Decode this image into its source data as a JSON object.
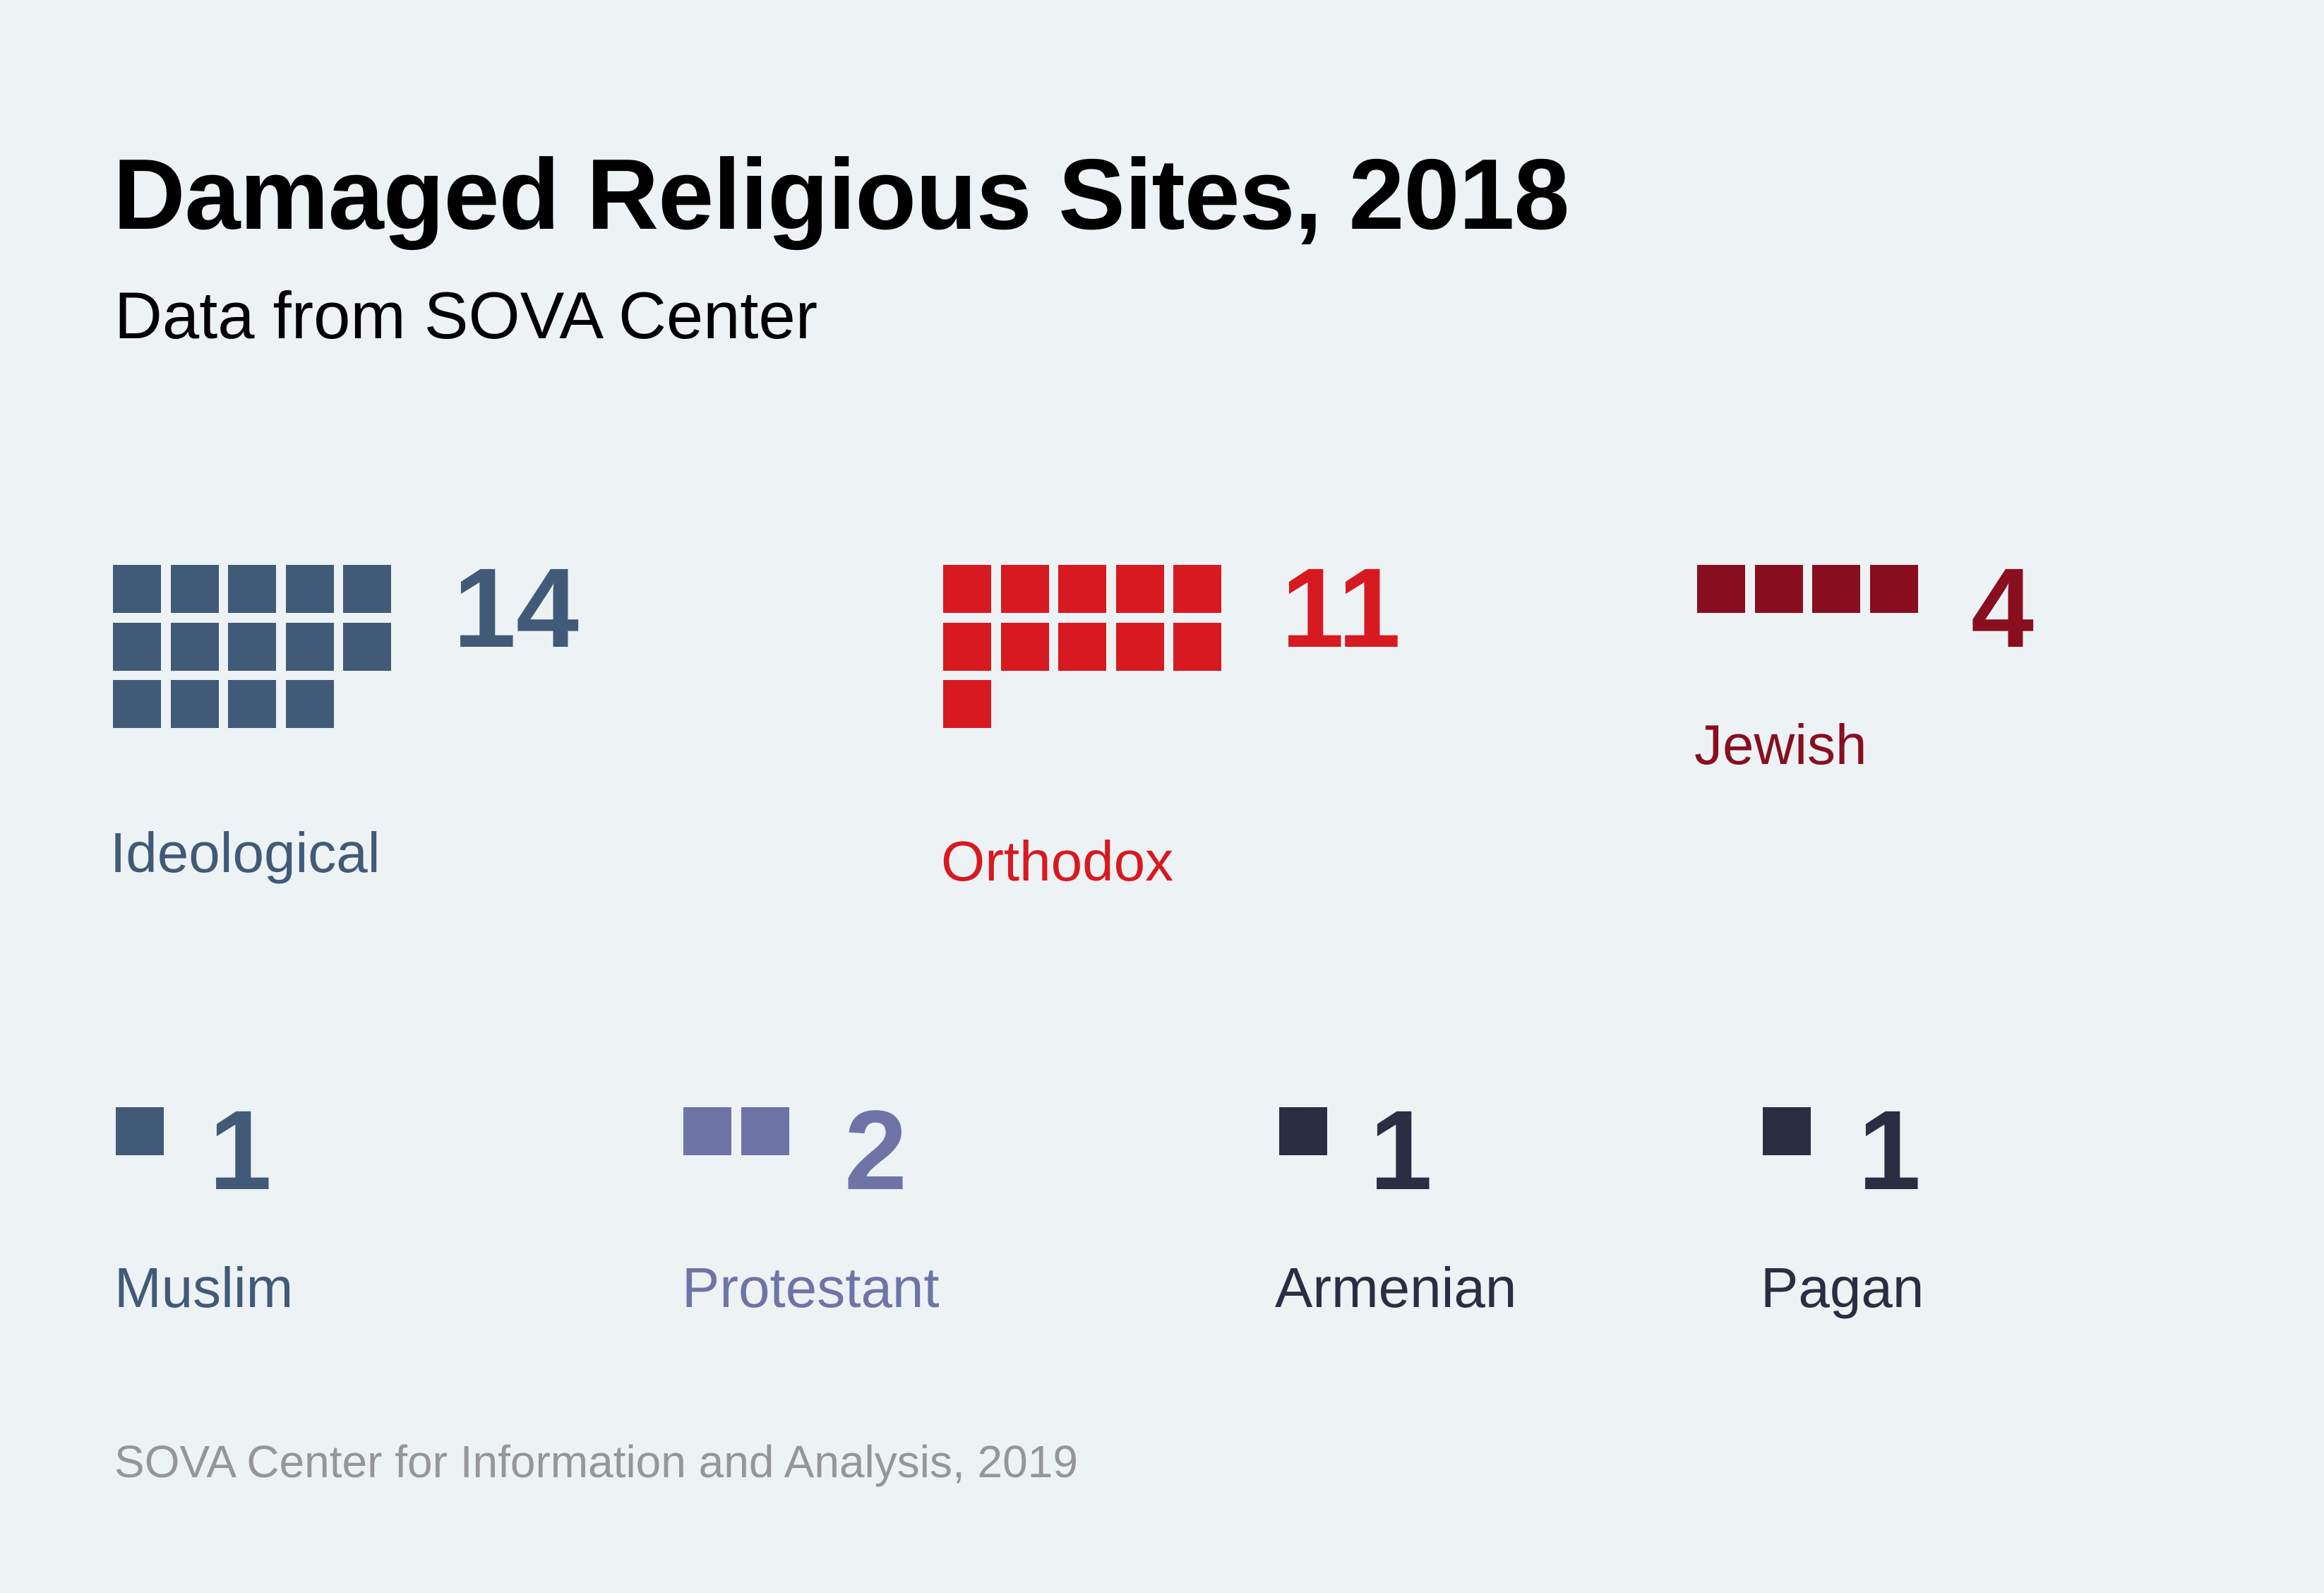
{
  "header": {
    "title": "Damaged Religious Sites, 2018",
    "subtitle": "Data from SOVA Center"
  },
  "footer": {
    "source": "SOVA Center for Information and Analysis, 2019"
  },
  "colors": {
    "background": "#edf2f5",
    "ideological": "#415a78",
    "orthodox": "#d71920",
    "jewish": "#880e20",
    "muslim": "#415a78",
    "protestant": "#6f74a7",
    "armenian": "#2b2d42",
    "pagan": "#2b2d42"
  },
  "chart_data": {
    "type": "waffle",
    "title": "Damaged Religious Sites, 2018",
    "subtitle": "Data from SOVA Center",
    "units_per_square": 1,
    "squares_per_row": 5,
    "categories": [
      "Ideological",
      "Orthodox",
      "Jewish",
      "Muslim",
      "Protestant",
      "Armenian",
      "Pagan"
    ],
    "values": [
      14,
      11,
      4,
      1,
      2,
      1,
      1
    ],
    "series": [
      {
        "key": "ideological",
        "name": "Ideological",
        "value": 14,
        "value_label": "14",
        "color": "#415a78"
      },
      {
        "key": "orthodox",
        "name": "Orthodox",
        "value": 11,
        "value_label": "11",
        "color": "#d71920"
      },
      {
        "key": "jewish",
        "name": "Jewish",
        "value": 4,
        "value_label": "4",
        "color": "#880e20"
      },
      {
        "key": "muslim",
        "name": "Muslim",
        "value": 1,
        "value_label": "1",
        "color": "#415a78"
      },
      {
        "key": "protestant",
        "name": "Protestant",
        "value": 2,
        "value_label": "2",
        "color": "#6f74a7"
      },
      {
        "key": "armenian",
        "name": "Armenian",
        "value": 1,
        "value_label": "1",
        "color": "#2b2d42"
      },
      {
        "key": "pagan",
        "name": "Pagan",
        "value": 1,
        "value_label": "1",
        "color": "#2b2d42"
      }
    ],
    "source": "SOVA Center for Information and Analysis, 2019"
  }
}
